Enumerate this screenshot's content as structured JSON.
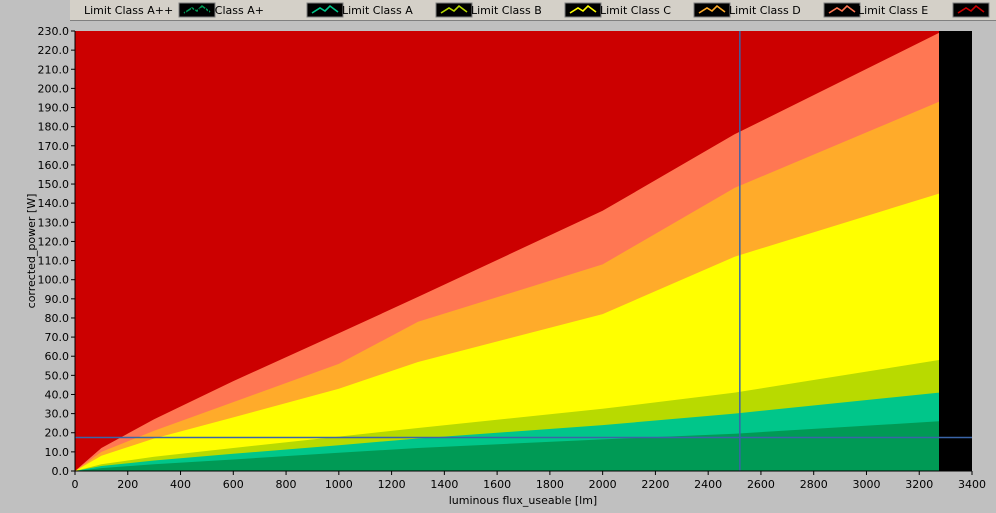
{
  "chart_data": {
    "type": "area",
    "xlabel": "luminous flux_useable [lm]",
    "ylabel": "corrected_power [W]",
    "xlim": [
      0,
      3400
    ],
    "ylim": [
      0,
      230
    ],
    "x_ticks": [
      "0",
      "200",
      "400",
      "600",
      "800",
      "1000",
      "1200",
      "1400",
      "1600",
      "1800",
      "2000",
      "2200",
      "2400",
      "2600",
      "2800",
      "3000",
      "3200",
      "3400"
    ],
    "y_ticks": [
      "0.0",
      "10.0",
      "20.0",
      "30.0",
      "40.0",
      "50.0",
      "60.0",
      "70.0",
      "80.0",
      "90.0",
      "100.0",
      "110.0",
      "120.0",
      "130.0",
      "140.0",
      "150.0",
      "160.0",
      "170.0",
      "180.0",
      "190.0",
      "200.0",
      "210.0",
      "220.0",
      "230.0"
    ],
    "data_extent_x": 3275,
    "series": [
      {
        "name": "Limit Class A++",
        "color": "#009a55",
        "x": [
          0,
          100,
          300,
          600,
          1000,
          1300,
          2000,
          2500,
          3275
        ],
        "y": [
          0,
          1.5,
          3.5,
          6,
          9.5,
          12,
          16.5,
          19.5,
          26
        ]
      },
      {
        "name": "Limit Class A+",
        "color": "#00c68a",
        "x": [
          0,
          100,
          300,
          600,
          1000,
          1300,
          2000,
          2500,
          3275
        ],
        "y": [
          0,
          2.6,
          5.5,
          9,
          13.5,
          17,
          24,
          30,
          41
        ]
      },
      {
        "name": "Limit Class A",
        "color": "#b8da00",
        "x": [
          0,
          100,
          300,
          600,
          1000,
          1300,
          2000,
          2500,
          3275
        ],
        "y": [
          0,
          3.5,
          7.5,
          12,
          18,
          22.5,
          32.5,
          41,
          58
        ]
      },
      {
        "name": "Limit Class B",
        "color": "#ffff00",
        "x": [
          0,
          100,
          300,
          600,
          1000,
          1300,
          2000,
          2500,
          3275
        ],
        "y": [
          0,
          8,
          17,
          28,
          43,
          57,
          82,
          112,
          145
        ]
      },
      {
        "name": "Limit Class C",
        "color": "#ffab2a",
        "x": [
          0,
          100,
          300,
          600,
          1000,
          1300,
          2000,
          2500,
          3275
        ],
        "y": [
          0,
          10,
          21,
          36,
          56,
          78,
          108,
          148,
          193
        ]
      },
      {
        "name": "Limit Class D",
        "color": "#ff7753",
        "x": [
          0,
          100,
          300,
          600,
          1000,
          1300,
          2000,
          2500,
          3275
        ],
        "y": [
          0,
          12,
          27,
          47,
          72,
          91,
          136,
          176,
          229
        ]
      },
      {
        "name": "Limit Class E",
        "color": "#cc0000",
        "x": [
          0,
          3275
        ],
        "y": [
          230,
          230
        ]
      }
    ],
    "cursor": {
      "x": 2520,
      "y": 17.5,
      "color": "#3a64a8"
    },
    "colors": {
      "plot_background": "#000000",
      "window_background": "#c0c0c0"
    },
    "grid": false,
    "legend_position": "top"
  }
}
